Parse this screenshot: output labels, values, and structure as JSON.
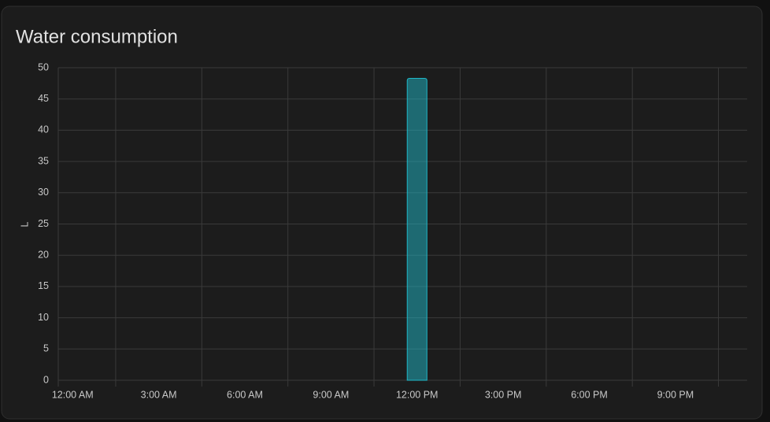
{
  "chart_data": {
    "type": "bar",
    "title": "Water consumption",
    "y_label": "L",
    "categories": [
      "12:00 AM",
      null,
      null,
      "3:00 AM",
      null,
      null,
      "6:00 AM",
      null,
      null,
      "9:00 AM",
      null,
      null,
      "12:00 PM",
      null,
      null,
      "3:00 PM",
      null,
      null,
      "6:00 PM",
      null,
      null,
      "9:00 PM",
      null,
      null
    ],
    "values": [
      null,
      null,
      null,
      null,
      null,
      null,
      null,
      null,
      null,
      null,
      null,
      null,
      48.3,
      null,
      null,
      null,
      null,
      null,
      null,
      null,
      null,
      null,
      null,
      null
    ],
    "color": "#1fb8c8",
    "ylim": [
      0,
      50
    ],
    "yticks": [
      0,
      5,
      10,
      15,
      20,
      25,
      30,
      35,
      40,
      45,
      50
    ],
    "grid": true
  }
}
